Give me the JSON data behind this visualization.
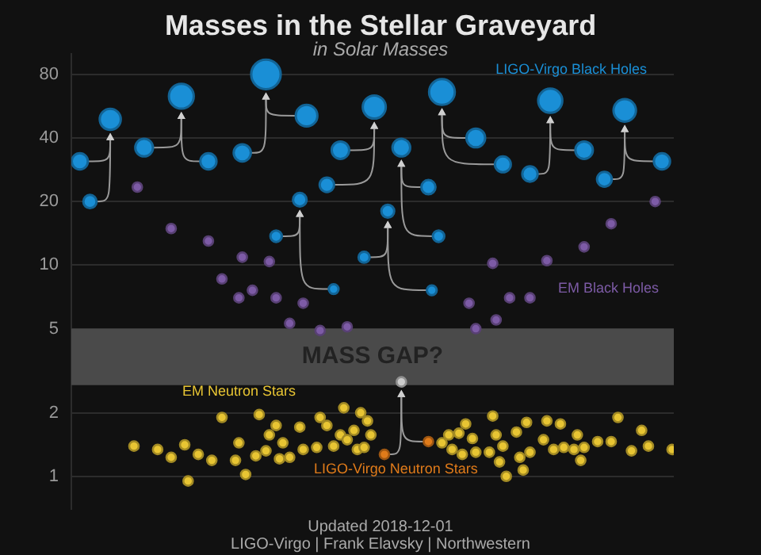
{
  "chart_data": {
    "type": "scatter",
    "title": "Masses in the Stellar Graveyard",
    "subtitle": "in Solar Masses",
    "annotations": [
      "Updated 2018-12-01",
      "LIGO-Virgo | Frank Elavsky | Northwestern"
    ],
    "log": true,
    "grid": "y",
    "tick_labels": "y",
    "legend": false,
    "ylim": [
      0.7,
      100
    ],
    "yticks": [
      1,
      2,
      5,
      10,
      20,
      40,
      80
    ],
    "bands": [
      {
        "axis": "y",
        "from": 2.7,
        "to": 5,
        "label": "MASS GAP?",
        "color": "#4a4a4a"
      }
    ],
    "categories": [
      null,
      null,
      null,
      null,
      null,
      null,
      null,
      null,
      null,
      null,
      null,
      null,
      null,
      null,
      null,
      null,
      null,
      null,
      null,
      null,
      null,
      null,
      null,
      null,
      null,
      null,
      null,
      null,
      null,
      null,
      null,
      null,
      null,
      null,
      null,
      null,
      null,
      null,
      null,
      null,
      null,
      null,
      null,
      null,
      null,
      null,
      null,
      null,
      null,
      null,
      null,
      null,
      null,
      null,
      null,
      null,
      null,
      null,
      null,
      null,
      null,
      null,
      null,
      null,
      null,
      null,
      null,
      null,
      null,
      null,
      null,
      null,
      null,
      null,
      null,
      null,
      null,
      null,
      null,
      null,
      null,
      null,
      null,
      null,
      null,
      null,
      null,
      null,
      null,
      null,
      null,
      null,
      null,
      null,
      null,
      null,
      null,
      null,
      null,
      null,
      null,
      null,
      null,
      null,
      null,
      null,
      null,
      null,
      null,
      null,
      null,
      null,
      null,
      null,
      null,
      null,
      null,
      null,
      null,
      null,
      null,
      null,
      null,
      null,
      null,
      null,
      null,
      null,
      null,
      null,
      null,
      null,
      null,
      null,
      null,
      null,
      null,
      null,
      null,
      null,
      null,
      null,
      null,
      null,
      null,
      null,
      null,
      null,
      null,
      null,
      null,
      null,
      null,
      null,
      null,
      null,
      null,
      null,
      null,
      null,
      null,
      null,
      null,
      null,
      null,
      null,
      null,
      null,
      null,
      null,
      null,
      null,
      null,
      null,
      null,
      null,
      null,
      null
    ],
    "series": [
      {
        "name": "LIGO-Virgo Black Holes",
        "type": "bubble",
        "color": "#1a8fd6",
        "sizes": [
          null,
          null,
          0.3,
          null,
          null,
          0.2,
          null,
          null,
          null,
          null,
          null,
          0.51,
          null,
          null,
          null,
          null,
          null,
          null,
          null,
          null,
          null,
          0.36,
          null,
          null,
          null,
          null,
          null,
          null,
          null,
          null,
          null,
          null,
          0.71,
          null,
          null,
          null,
          null,
          null,
          null,
          null,
          0.3,
          null,
          null,
          null,
          null,
          null,
          null,
          null,
          null,
          null,
          0.34,
          null,
          null,
          null,
          null,
          null,
          null,
          1,
          null,
          null,
          0.15,
          null,
          null,
          null,
          null,
          null,
          null,
          0.21,
          null,
          0.54,
          null,
          null,
          null,
          null,
          null,
          0.24,
          null,
          0.11,
          null,
          0.35,
          null,
          null,
          null,
          null,
          null,
          null,
          0.14,
          null,
          null,
          0.61,
          null,
          null,
          null,
          0.19,
          null,
          null,
          null,
          0.36,
          null,
          null,
          null,
          null,
          null,
          null,
          null,
          0.23,
          0.11,
          null,
          0.15,
          0.76,
          null,
          null,
          null,
          null,
          null,
          null,
          null,
          null,
          null,
          0.4,
          null,
          null,
          null,
          null,
          null,
          null,
          null,
          0.29,
          null,
          null,
          null,
          null,
          null,
          null,
          null,
          0.27,
          null,
          null,
          null,
          null,
          null,
          0.67,
          null,
          null,
          null,
          null,
          null,
          null,
          null,
          null,
          null,
          0.35,
          null,
          null,
          null,
          null,
          null,
          0.25,
          null,
          null,
          null,
          null,
          null,
          0.58,
          null,
          null,
          null,
          null,
          null,
          null,
          null,
          null,
          null,
          null,
          0.3,
          null,
          null,
          null
        ],
        "values": [
          null,
          null,
          31,
          null,
          null,
          20,
          null,
          null,
          null,
          null,
          null,
          49,
          null,
          null,
          null,
          null,
          null,
          null,
          null,
          null,
          null,
          36,
          null,
          null,
          null,
          null,
          null,
          null,
          null,
          null,
          null,
          null,
          63,
          null,
          null,
          null,
          null,
          null,
          null,
          null,
          31,
          null,
          null,
          null,
          null,
          null,
          null,
          null,
          null,
          null,
          34,
          null,
          null,
          null,
          null,
          null,
          null,
          80,
          null,
          null,
          13.7,
          null,
          null,
          null,
          null,
          null,
          null,
          20.4,
          null,
          51,
          null,
          null,
          null,
          null,
          null,
          24,
          null,
          7.7,
          null,
          35,
          null,
          null,
          null,
          null,
          null,
          null,
          10.9,
          null,
          null,
          56,
          null,
          null,
          null,
          18,
          null,
          null,
          null,
          36,
          null,
          null,
          null,
          null,
          null,
          null,
          null,
          23.4,
          7.6,
          null,
          13.7,
          66,
          null,
          null,
          null,
          null,
          null,
          null,
          null,
          null,
          null,
          40,
          null,
          null,
          null,
          null,
          null,
          null,
          null,
          30,
          null,
          null,
          null,
          null,
          null,
          null,
          null,
          27,
          null,
          null,
          null,
          null,
          null,
          60,
          null,
          null,
          null,
          null,
          null,
          null,
          null,
          null,
          null,
          35,
          null,
          null,
          null,
          null,
          null,
          25.5,
          null,
          null,
          null,
          null,
          null,
          54,
          null,
          null,
          null,
          null,
          null,
          null,
          null,
          null,
          null,
          null,
          31,
          null,
          null,
          null
        ]
      },
      {
        "name": "EM Black Holes",
        "color": "#7d5ba6",
        "values": [
          null,
          null,
          null,
          null,
          null,
          null,
          null,
          null,
          null,
          null,
          null,
          null,
          null,
          null,
          null,
          null,
          null,
          null,
          null,
          23.4,
          null,
          null,
          null,
          null,
          null,
          null,
          null,
          null,
          null,
          14.9,
          null,
          null,
          null,
          null,
          null,
          null,
          null,
          null,
          null,
          null,
          13,
          null,
          null,
          null,
          8.6,
          null,
          null,
          null,
          null,
          7,
          10.9,
          null,
          null,
          7.6,
          null,
          null,
          null,
          null,
          10.4,
          null,
          7,
          null,
          null,
          null,
          5.3,
          null,
          null,
          null,
          6.6,
          null,
          null,
          null,
          null,
          4.9,
          null,
          null,
          null,
          null,
          null,
          null,
          null,
          5.1,
          null,
          null,
          null,
          null,
          null,
          null,
          null,
          null,
          null,
          null,
          null,
          null,
          null,
          null,
          null,
          null,
          null,
          null,
          null,
          null,
          null,
          null,
          null,
          null,
          null,
          null,
          null,
          null,
          null,
          null,
          null,
          null,
          null,
          null,
          null,
          6.6,
          null,
          5,
          null,
          null,
          null,
          null,
          10.2,
          5.5,
          null,
          null,
          null,
          7,
          null,
          null,
          null,
          null,
          null,
          7,
          null,
          null,
          null,
          null,
          10.5,
          null,
          null,
          null,
          null,
          null,
          null,
          null,
          null,
          null,
          null,
          12.2,
          null,
          null,
          null,
          null,
          null,
          null,
          null,
          15.7,
          null,
          null,
          null,
          null,
          null,
          null,
          null,
          null,
          null,
          null,
          null,
          null,
          20,
          null,
          null,
          null,
          null,
          null
        ]
      },
      {
        "name": "EM Neutron Stars",
        "color": "#e8c533",
        "values": [
          null,
          null,
          null,
          null,
          null,
          null,
          null,
          null,
          null,
          null,
          null,
          null,
          null,
          null,
          null,
          null,
          null,
          null,
          1.39,
          null,
          null,
          null,
          null,
          null,
          null,
          1.34,
          null,
          null,
          null,
          1.23,
          null,
          null,
          null,
          1.41,
          0.95,
          null,
          null,
          1.27,
          null,
          null,
          null,
          1.19,
          null,
          null,
          1.9,
          null,
          null,
          null,
          1.19,
          1.44,
          null,
          1.02,
          null,
          null,
          1.25,
          1.96,
          null,
          1.32,
          1.57,
          null,
          1.74,
          1.21,
          1.44,
          null,
          1.23,
          null,
          null,
          1.71,
          1.34,
          null,
          null,
          null,
          1.37,
          1.9,
          null,
          1.74,
          null,
          1.39,
          null,
          1.57,
          2.11,
          1.49,
          null,
          1.65,
          1.34,
          2,
          1.37,
          1.83,
          1.57,
          null,
          null,
          null,
          null,
          null,
          null,
          null,
          null,
          null,
          null,
          null,
          null,
          null,
          null,
          null,
          null,
          null,
          null,
          null,
          null,
          1.44,
          null,
          1.57,
          1.34,
          null,
          1.6,
          1.27,
          1.77,
          null,
          1.51,
          1.3,
          null,
          null,
          null,
          1.3,
          1.93,
          1.57,
          1.17,
          1.39,
          1,
          null,
          null,
          1.62,
          1.23,
          1.07,
          1.8,
          1.3,
          null,
          null,
          null,
          1.49,
          1.83,
          null,
          1.34,
          null,
          1.77,
          1.37,
          null,
          null,
          1.34,
          1.57,
          1.19,
          1.37,
          null,
          null,
          null,
          1.46,
          null,
          null,
          null,
          1.46,
          null,
          1.9,
          null,
          null,
          null,
          1.32,
          null,
          null,
          1.65,
          null,
          1.39,
          null,
          null,
          null,
          null,
          null,
          null,
          1.34
        ]
      },
      {
        "name": "LIGO-Virgo Neutron Stars",
        "color": "#e07b1a",
        "values": [
          null,
          null,
          null,
          null,
          null,
          null,
          null,
          null,
          null,
          null,
          null,
          null,
          null,
          null,
          null,
          null,
          null,
          null,
          null,
          null,
          null,
          null,
          null,
          null,
          null,
          null,
          null,
          null,
          null,
          null,
          null,
          null,
          null,
          null,
          null,
          null,
          null,
          null,
          null,
          null,
          null,
          null,
          null,
          null,
          null,
          null,
          null,
          null,
          null,
          null,
          null,
          null,
          null,
          null,
          null,
          null,
          null,
          null,
          null,
          null,
          null,
          null,
          null,
          null,
          null,
          null,
          null,
          null,
          null,
          null,
          null,
          null,
          null,
          null,
          null,
          null,
          null,
          null,
          null,
          null,
          null,
          null,
          null,
          null,
          null,
          null,
          null,
          null,
          null,
          null,
          null,
          null,
          1.27,
          null,
          null,
          null,
          null,
          null,
          null,
          null,
          null,
          null,
          null,
          null,
          null,
          1.46,
          null,
          null,
          null,
          null,
          null,
          null,
          null,
          null,
          null,
          null,
          null,
          null,
          null,
          null,
          null,
          null,
          null,
          null,
          null,
          null,
          null,
          null,
          null,
          null,
          null,
          null,
          null,
          null,
          null,
          null,
          null,
          null,
          null,
          null,
          null,
          null,
          null,
          null,
          null,
          null,
          null,
          null,
          null,
          null,
          null,
          null,
          null,
          null,
          null,
          null,
          null,
          null,
          null,
          null,
          null,
          null,
          null,
          null,
          null,
          null,
          null,
          null,
          null,
          null,
          null,
          null,
          null,
          null,
          null,
          null,
          null,
          null
        ]
      },
      {
        "color": "#cccccc",
        "values": [
          null,
          null,
          null,
          null,
          null,
          null,
          null,
          null,
          null,
          null,
          null,
          null,
          null,
          null,
          null,
          null,
          null,
          null,
          null,
          null,
          null,
          null,
          null,
          null,
          null,
          null,
          null,
          null,
          null,
          null,
          null,
          null,
          null,
          null,
          null,
          null,
          null,
          null,
          null,
          null,
          null,
          null,
          null,
          null,
          null,
          null,
          null,
          null,
          null,
          null,
          null,
          null,
          null,
          null,
          null,
          null,
          null,
          null,
          null,
          null,
          null,
          null,
          null,
          null,
          null,
          null,
          null,
          null,
          null,
          null,
          null,
          null,
          null,
          null,
          null,
          null,
          null,
          null,
          null,
          null,
          null,
          null,
          null,
          null,
          null,
          null,
          null,
          null,
          null,
          null,
          null,
          null,
          null,
          null,
          null,
          null,
          null,
          2.8,
          null,
          null,
          null,
          null,
          null,
          null,
          null,
          null,
          null,
          null,
          null,
          null,
          null,
          null,
          null,
          null,
          null,
          null,
          null,
          null,
          null,
          null,
          null,
          null,
          null,
          null,
          null,
          null,
          null,
          null,
          null,
          null,
          null,
          null,
          null,
          null,
          null,
          null,
          null,
          null,
          null,
          null,
          null,
          null,
          null,
          null,
          null,
          null,
          null,
          null,
          null,
          null,
          null,
          null,
          null,
          null,
          null,
          null,
          null,
          null,
          null,
          null,
          null,
          null,
          null,
          null,
          null,
          null,
          null,
          null,
          null,
          null,
          null,
          null,
          null,
          null,
          null,
          null,
          null,
          null
        ]
      }
    ]
  }
}
